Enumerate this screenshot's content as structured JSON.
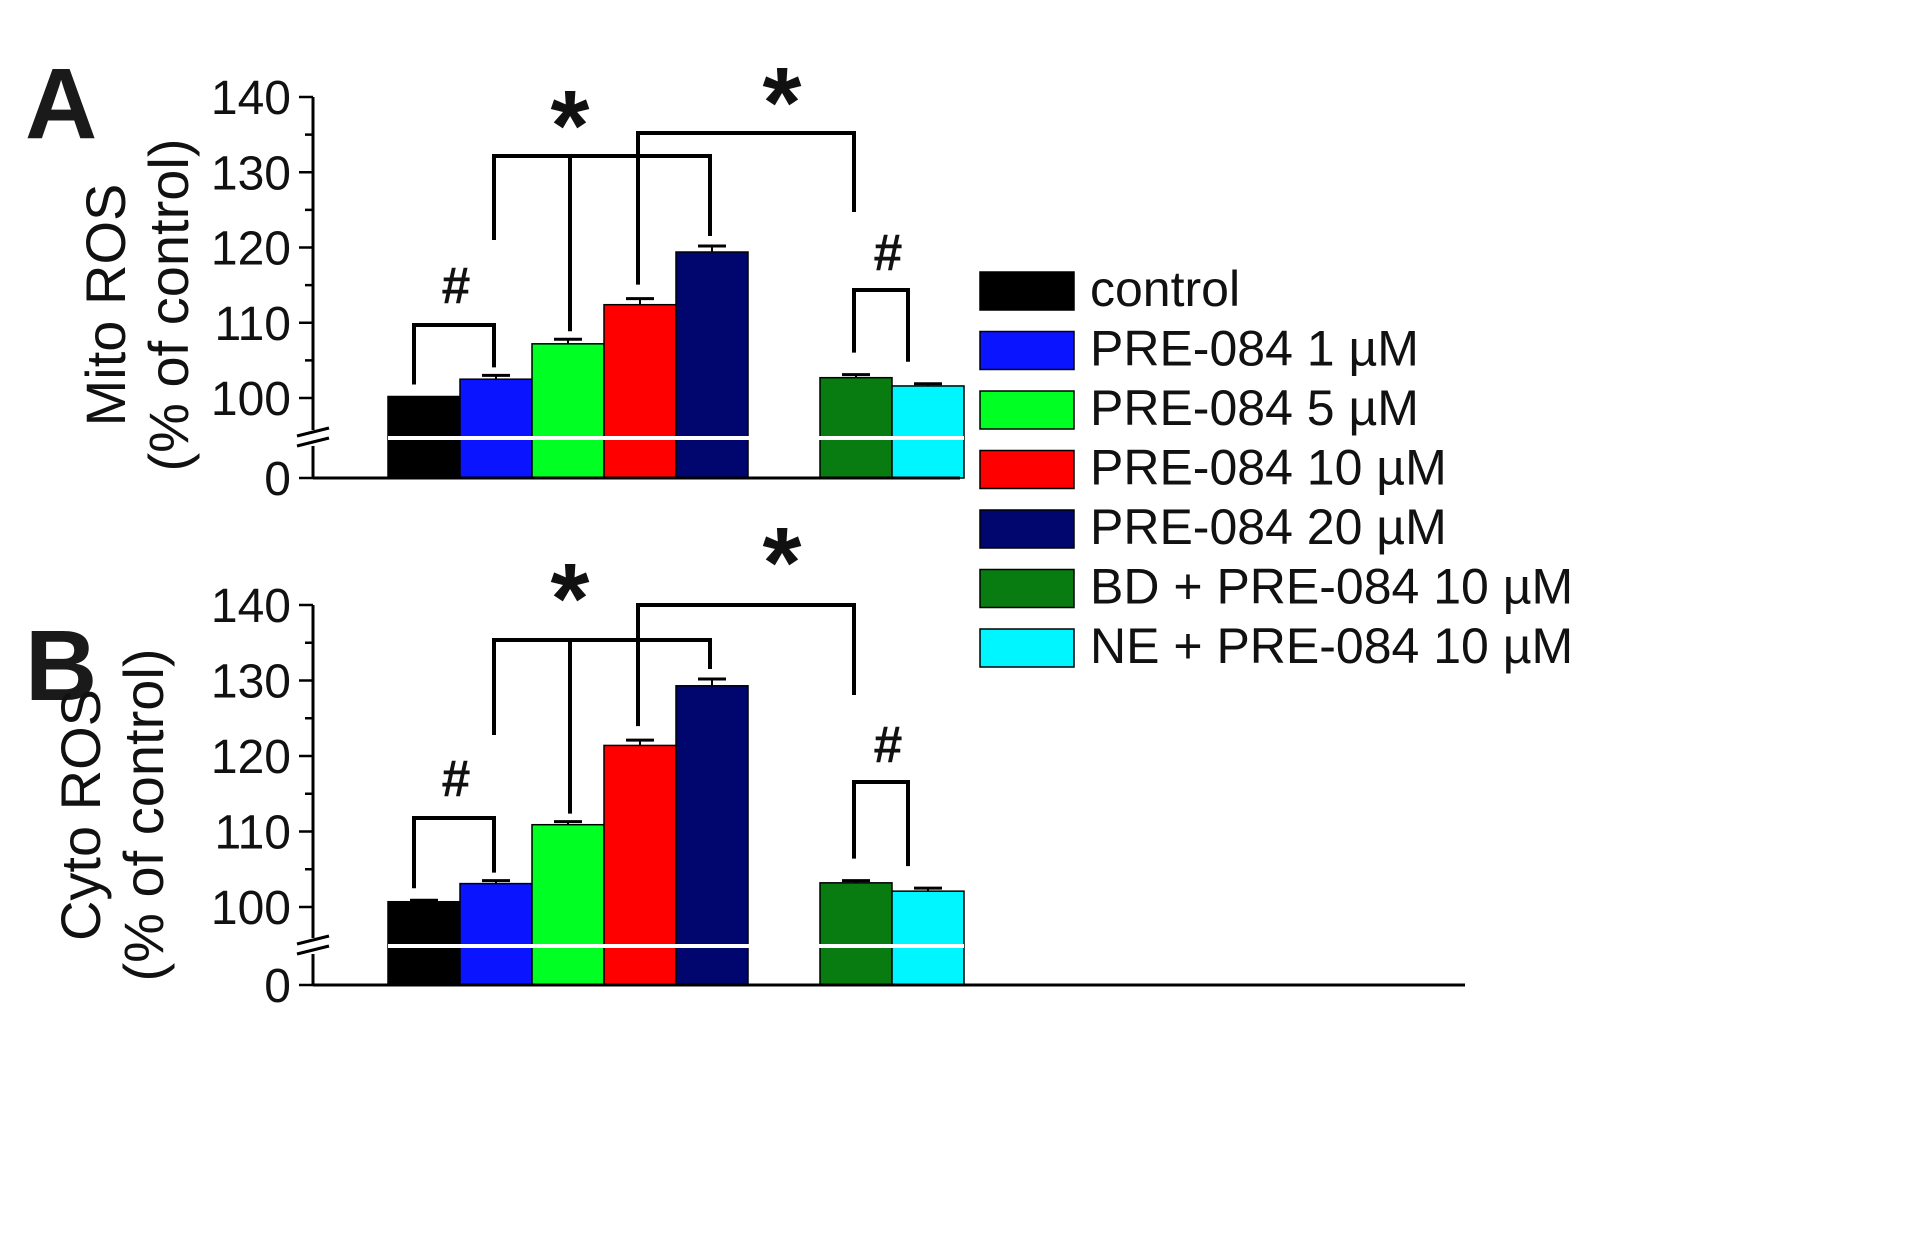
{
  "colors": {
    "control": "#000000",
    "pre1": "#0a14ff",
    "pre5": "#00ff22",
    "pre10": "#ff0000",
    "pre20": "#00066e",
    "bd": "#087c10",
    "ne": "#00f6ff"
  },
  "legend": {
    "items": [
      {
        "label": "control",
        "color": "#000000"
      },
      {
        "label": "PRE-084 1 µM",
        "color": "#0a14ff"
      },
      {
        "label": "PRE-084 5 µM",
        "color": "#00ff22"
      },
      {
        "label": "PRE-084 10 µM",
        "color": "#ff0000"
      },
      {
        "label": "PRE-084 20 µM",
        "color": "#00066e"
      },
      {
        "label": "BD + PRE-084 10 µM",
        "color": "#087c10"
      },
      {
        "label": "NE + PRE-084 10 µM",
        "color": "#00f6ff"
      }
    ]
  },
  "chart_data": [
    {
      "type": "bar",
      "panel": "A",
      "ylabel_line1": "Mito ROS",
      "ylabel_line2": "(% of control)",
      "yticks": [
        "0",
        "100",
        "110",
        "120",
        "130",
        "140"
      ],
      "ylim": [
        95,
        140
      ],
      "axis_break": true,
      "categories": [
        "control",
        "PRE-084 1 µM",
        "PRE-084 5 µM",
        "PRE-084 10 µM",
        "PRE-084 20 µM",
        "BD + PRE-084 10 µM",
        "NE + PRE-084 10 µM"
      ],
      "values": [
        100.2,
        102.5,
        107.2,
        112.4,
        119.4,
        102.7,
        101.6
      ],
      "errors": [
        0.0,
        0.5,
        0.6,
        0.8,
        0.8,
        0.4,
        0.3
      ],
      "annotations": [
        "#",
        "*",
        "*",
        "#"
      ]
    },
    {
      "type": "bar",
      "panel": "B",
      "ylabel_line1": "Cyto ROS",
      "ylabel_line2": "(% of control)",
      "yticks": [
        "0",
        "100",
        "110",
        "120",
        "130",
        "140"
      ],
      "ylim": [
        95,
        140
      ],
      "axis_break": true,
      "categories": [
        "control",
        "PRE-084 1 µM",
        "PRE-084 5 µM",
        "PRE-084 10 µM",
        "PRE-084 20 µM",
        "BD + PRE-084 10 µM",
        "NE + PRE-084 10 µM"
      ],
      "values": [
        100.7,
        103.1,
        110.9,
        121.4,
        129.3,
        103.2,
        102.1
      ],
      "errors": [
        0.2,
        0.4,
        0.4,
        0.7,
        0.9,
        0.3,
        0.4
      ],
      "annotations": [
        "#",
        "*",
        "*",
        "#"
      ]
    }
  ]
}
